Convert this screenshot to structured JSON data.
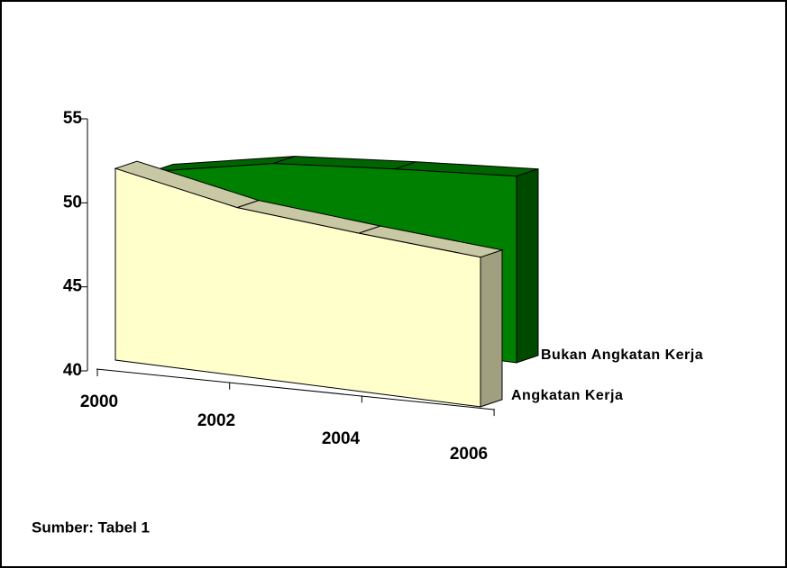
{
  "chart_data": {
    "type": "area3d",
    "categories": [
      "2000",
      "2002",
      "2004",
      "2006"
    ],
    "series": [
      {
        "name": "Angkatan Kerja",
        "color": "#FFFFCC",
        "values": [
          51.4,
          50,
          49.4,
          48.9
        ]
      },
      {
        "name": "Bukan Angkatan Kerja",
        "color": "#008000",
        "values": [
          48.6,
          50,
          50.6,
          51.1
        ]
      }
    ],
    "ylim": [
      40,
      55
    ],
    "yticks": [
      40,
      45,
      50,
      55
    ],
    "note": "Sumber: Tabel 1"
  }
}
